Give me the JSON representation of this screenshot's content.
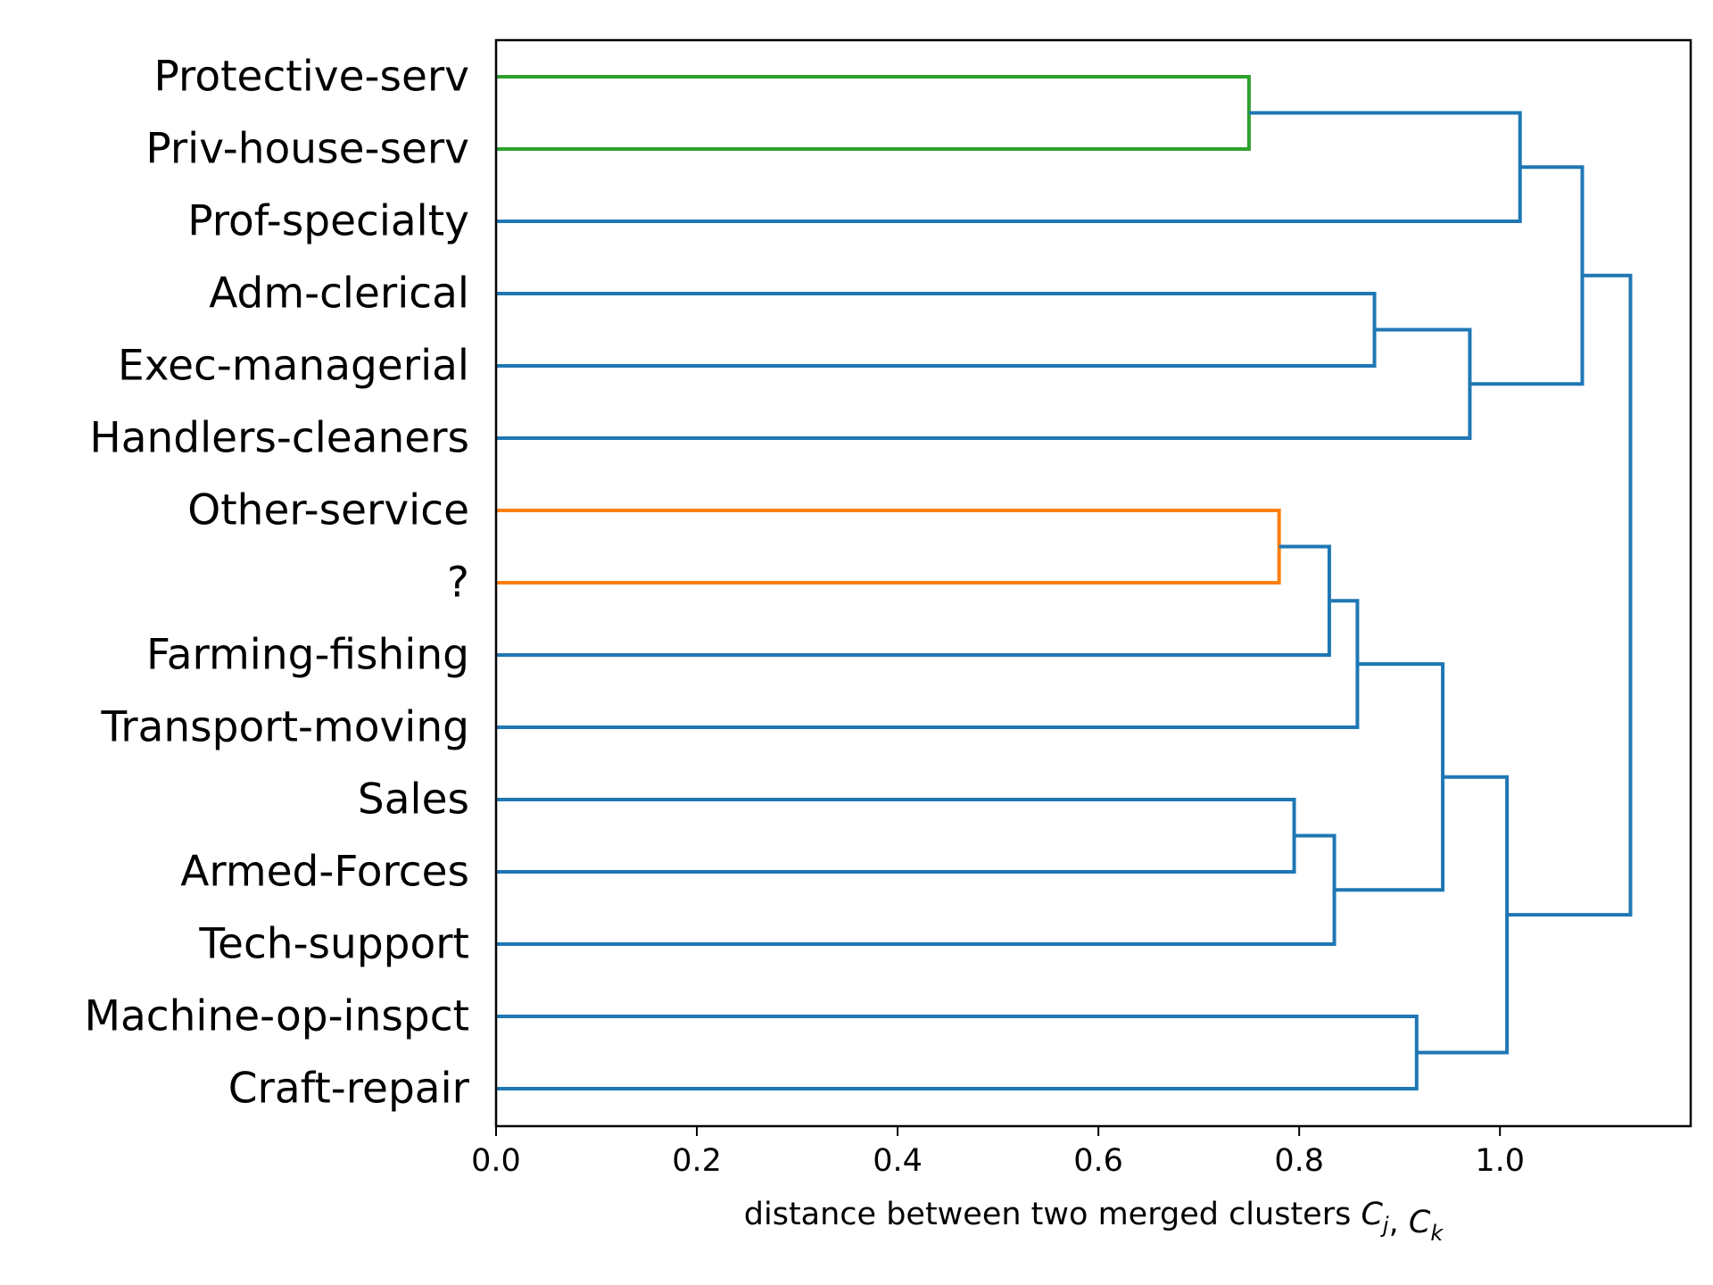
{
  "chart_data": {
    "type": "dendrogram",
    "orientation": "left",
    "xlabel": {
      "text": "distance between two merged clusters ",
      "math": [
        {
          "sym": "C",
          "sub": "j"
        },
        {
          "sep": ", "
        },
        {
          "sym": "C",
          "sub": "k"
        }
      ]
    },
    "xlim": [
      0.0,
      1.19
    ],
    "xticks": [
      0.0,
      0.2,
      0.4,
      0.6,
      0.8,
      1.0
    ],
    "xtick_labels": [
      "0.0",
      "0.2",
      "0.4",
      "0.6",
      "0.8",
      "1.0"
    ],
    "grid": false,
    "colors": {
      "blue": "#1f77b4",
      "orange": "#ff7f0e",
      "green": "#2ca02c",
      "axis": "#000000"
    },
    "leaves": [
      "Protective-serv",
      "Priv-house-serv",
      "Prof-specialty",
      "Adm-clerical",
      "Exec-managerial",
      "Handlers-cleaners",
      "Other-service",
      "?",
      "Farming-fishing",
      "Transport-moving",
      "Sales",
      "Armed-Forces",
      "Tech-support",
      "Machine-op-inspct",
      "Craft-repair"
    ],
    "merges": [
      {
        "left": "Protective-serv",
        "right": "Priv-house-serv",
        "distance": 0.75,
        "color": "green"
      },
      {
        "left": "Other-service",
        "right": "?",
        "distance": 0.78,
        "color": "orange"
      },
      {
        "left": "Sales",
        "right": "Armed-Forces",
        "distance": 0.795,
        "color": "blue"
      },
      {
        "left": "M2",
        "right": "Farming-fishing",
        "distance": 0.83,
        "color": "blue"
      },
      {
        "left": "M3",
        "right": "Tech-support",
        "distance": 0.835,
        "color": "blue"
      },
      {
        "left": "M4",
        "right": "Transport-moving",
        "distance": 0.858,
        "color": "blue"
      },
      {
        "left": "Adm-clerical",
        "right": "Exec-managerial",
        "distance": 0.875,
        "color": "blue"
      },
      {
        "left": "Machine-op-inspct",
        "right": "Craft-repair",
        "distance": 0.917,
        "color": "blue"
      },
      {
        "left": "M6",
        "right": "M5",
        "distance": 0.943,
        "color": "blue"
      },
      {
        "left": "M7",
        "right": "Handlers-cleaners",
        "distance": 0.97,
        "color": "blue"
      },
      {
        "left": "M9",
        "right": "M8",
        "distance": 1.007,
        "color": "blue"
      },
      {
        "left": "M1",
        "right": "Prof-specialty",
        "distance": 1.02,
        "color": "blue"
      },
      {
        "left": "M12",
        "right": "M10",
        "distance": 1.082,
        "color": "blue"
      },
      {
        "left": "M13",
        "right": "M11",
        "distance": 1.13,
        "color": "blue"
      }
    ]
  }
}
